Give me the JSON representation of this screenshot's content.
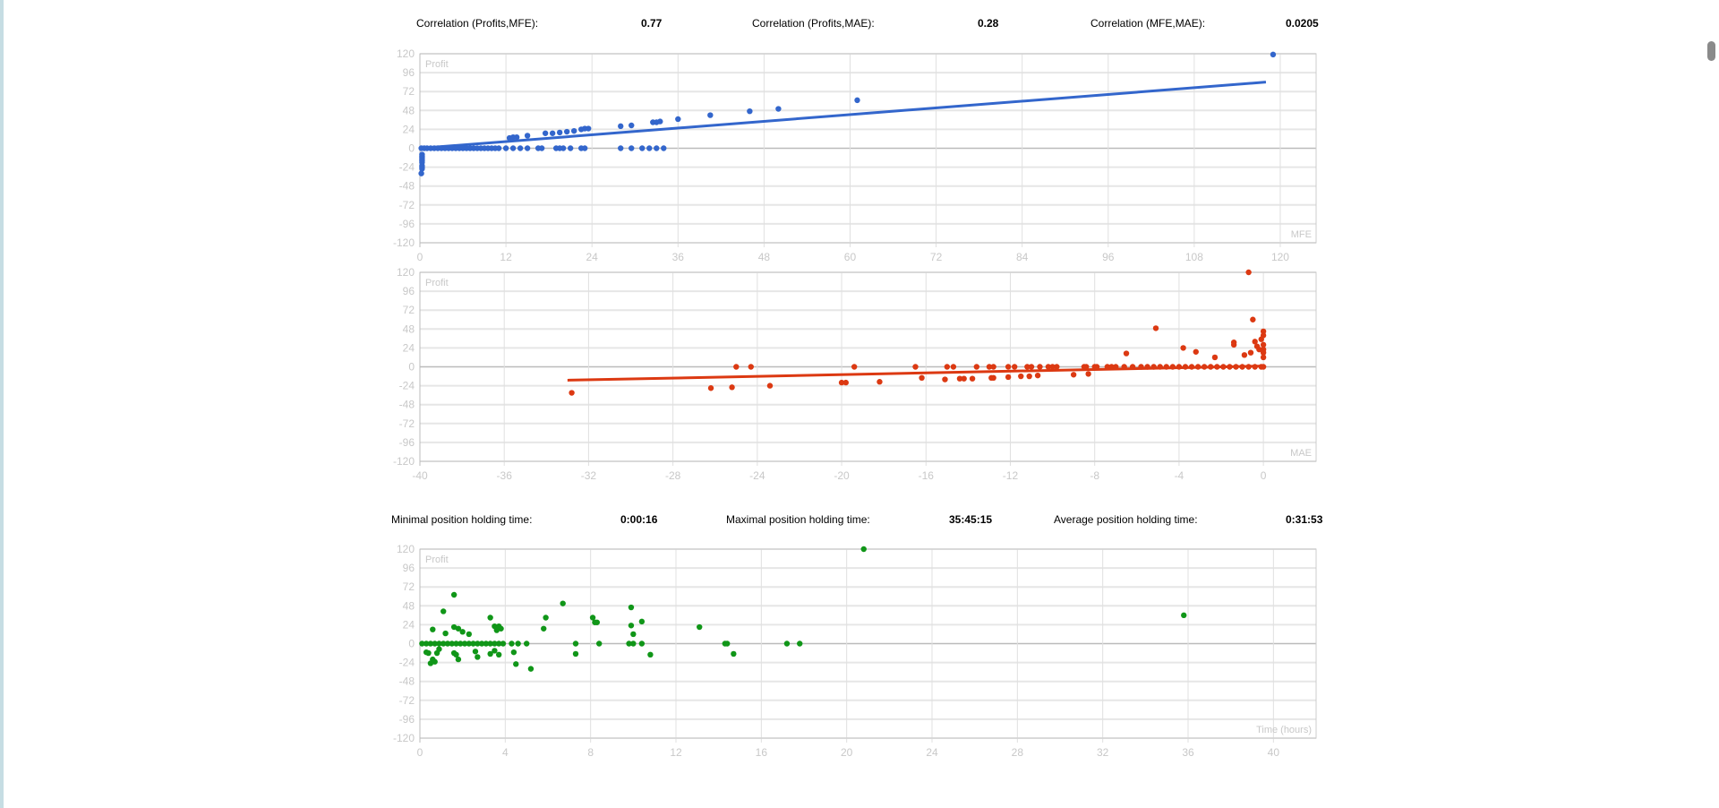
{
  "stats_top": [
    {
      "label": "Correlation (Profits,MFE):",
      "value": "0.77"
    },
    {
      "label": "Correlation (Profits,MAE):",
      "value": "0.28"
    },
    {
      "label": "Correlation (MFE,MAE):",
      "value": "0.0205"
    }
  ],
  "stats_bottom": [
    {
      "label": "Minimal position holding time:",
      "value": "0:00:16"
    },
    {
      "label": "Maximal position holding time:",
      "value": "35:45:15"
    },
    {
      "label": "Average position holding time:",
      "value": "0:31:53"
    }
  ],
  "chart_data": [
    {
      "type": "scatter",
      "ylabel": "Profit",
      "xlabel": "MFE",
      "color": "#3366cc",
      "xlim": [
        0,
        125
      ],
      "ylim": [
        -120,
        120
      ],
      "xticks": [
        0,
        12,
        24,
        36,
        48,
        60,
        72,
        84,
        96,
        108,
        120
      ],
      "yticks": [
        120,
        96,
        72,
        48,
        24,
        0,
        -24,
        -48,
        -72,
        -96,
        -120
      ],
      "trend": [
        [
          0,
          0
        ],
        [
          118,
          84
        ]
      ],
      "points": [
        [
          0.2,
          0
        ],
        [
          0.6,
          0
        ],
        [
          1,
          0
        ],
        [
          1.5,
          0
        ],
        [
          2,
          0
        ],
        [
          2.5,
          0
        ],
        [
          3,
          0
        ],
        [
          3.5,
          0
        ],
        [
          4,
          0
        ],
        [
          4.5,
          0
        ],
        [
          5,
          0
        ],
        [
          5.5,
          0
        ],
        [
          6,
          0
        ],
        [
          6.5,
          0
        ],
        [
          7,
          0
        ],
        [
          7.5,
          0
        ],
        [
          8,
          0
        ],
        [
          8.5,
          0
        ],
        [
          9,
          0
        ],
        [
          9.5,
          0
        ],
        [
          10,
          0
        ],
        [
          10.5,
          0
        ],
        [
          11,
          0
        ],
        [
          12,
          0
        ],
        [
          13,
          0
        ],
        [
          14,
          0
        ],
        [
          15,
          0
        ],
        [
          16.5,
          0
        ],
        [
          17,
          0
        ],
        [
          19,
          0
        ],
        [
          19.5,
          0
        ],
        [
          20,
          0
        ],
        [
          21,
          0
        ],
        [
          22.5,
          0
        ],
        [
          23,
          0
        ],
        [
          28,
          0
        ],
        [
          29.5,
          0
        ],
        [
          31,
          0
        ],
        [
          32,
          0
        ],
        [
          33,
          0
        ],
        [
          34,
          0
        ],
        [
          12.5,
          13
        ],
        [
          13,
          14
        ],
        [
          13.5,
          14
        ],
        [
          15,
          16
        ],
        [
          17.5,
          19
        ],
        [
          18.5,
          19
        ],
        [
          19.5,
          20
        ],
        [
          20.5,
          21
        ],
        [
          21.5,
          22
        ],
        [
          22.5,
          24
        ],
        [
          23,
          25
        ],
        [
          23.5,
          25
        ],
        [
          28,
          28
        ],
        [
          29.5,
          29
        ],
        [
          32.5,
          33
        ],
        [
          33,
          33
        ],
        [
          33.5,
          34
        ],
        [
          36,
          37
        ],
        [
          40.5,
          42
        ],
        [
          46,
          47
        ],
        [
          50,
          50
        ],
        [
          61,
          61
        ],
        [
          119,
          119
        ],
        [
          0.3,
          -8
        ],
        [
          0.3,
          -10
        ],
        [
          0.3,
          -12
        ],
        [
          0.3,
          -14
        ],
        [
          0.3,
          -16
        ],
        [
          0.3,
          -18
        ],
        [
          0.3,
          -22
        ],
        [
          0.3,
          -24
        ],
        [
          0.3,
          -26
        ],
        [
          0.2,
          -32
        ]
      ]
    },
    {
      "type": "scatter",
      "ylabel": "Profit",
      "xlabel": "MAE",
      "color": "#dc3912",
      "xlim": [
        -40,
        2.5
      ],
      "ylim": [
        -120,
        120
      ],
      "xticks": [
        -40,
        -36,
        -32,
        -28,
        -24,
        -20,
        -16,
        -12,
        -8,
        -4,
        0
      ],
      "yticks": [
        120,
        96,
        72,
        48,
        24,
        0,
        -24,
        -48,
        -72,
        -96,
        -120
      ],
      "trend": [
        [
          -33,
          -17
        ],
        [
          0,
          1
        ]
      ],
      "points": [
        [
          -32.8,
          -33
        ],
        [
          -26.2,
          -27
        ],
        [
          -25.2,
          -26
        ],
        [
          -25,
          0
        ],
        [
          -24.3,
          0
        ],
        [
          -23.4,
          -24
        ],
        [
          -20,
          -20
        ],
        [
          -19.8,
          -20
        ],
        [
          -19.4,
          0
        ],
        [
          -18.2,
          -19
        ],
        [
          -16.5,
          0
        ],
        [
          -16.2,
          -14
        ],
        [
          -15.1,
          -16
        ],
        [
          -15,
          0
        ],
        [
          -14.7,
          0
        ],
        [
          -14.4,
          -15
        ],
        [
          -14.2,
          -15
        ],
        [
          -13.8,
          -15
        ],
        [
          -13.6,
          0
        ],
        [
          -13,
          0
        ],
        [
          -12.9,
          -14
        ],
        [
          -12.8,
          0
        ],
        [
          -12.8,
          -14
        ],
        [
          -12.1,
          0
        ],
        [
          -12.1,
          -13
        ],
        [
          -11.8,
          0
        ],
        [
          -11.5,
          -12
        ],
        [
          -11.2,
          0
        ],
        [
          -11.1,
          -12
        ],
        [
          -11,
          0
        ],
        [
          -10.7,
          -11
        ],
        [
          -10.6,
          0
        ],
        [
          -10.2,
          0
        ],
        [
          -10,
          0
        ],
        [
          -9.8,
          0
        ],
        [
          -9,
          -10
        ],
        [
          -8.5,
          0
        ],
        [
          -8.4,
          0
        ],
        [
          -8.3,
          -9
        ],
        [
          -8,
          0
        ],
        [
          -7.9,
          0
        ],
        [
          -7.4,
          0
        ],
        [
          -7.2,
          0
        ],
        [
          -7,
          0
        ],
        [
          -6.6,
          0
        ],
        [
          -6.5,
          17
        ],
        [
          -6.2,
          0
        ],
        [
          -5.8,
          0
        ],
        [
          -5.5,
          0
        ],
        [
          -5.2,
          0
        ],
        [
          -4.9,
          0
        ],
        [
          -4.6,
          0
        ],
        [
          -4.3,
          0
        ],
        [
          -4,
          0
        ],
        [
          -3.7,
          0
        ],
        [
          -3.4,
          0
        ],
        [
          -3.1,
          0
        ],
        [
          -2.8,
          0
        ],
        [
          -2.5,
          0
        ],
        [
          -2.2,
          0
        ],
        [
          -1.9,
          0
        ],
        [
          -1.6,
          0
        ],
        [
          -1.3,
          0
        ],
        [
          -1,
          0
        ],
        [
          -0.7,
          0
        ],
        [
          -0.4,
          0
        ],
        [
          -0.1,
          0
        ],
        [
          0,
          0
        ],
        [
          -5.1,
          49
        ],
        [
          -3.8,
          24
        ],
        [
          -3.2,
          19
        ],
        [
          -2.3,
          12
        ],
        [
          -1.4,
          28
        ],
        [
          -1.4,
          31
        ],
        [
          -0.9,
          15
        ],
        [
          -0.7,
          120
        ],
        [
          -0.6,
          18
        ],
        [
          -0.5,
          60
        ],
        [
          -0.4,
          32
        ],
        [
          -0.3,
          26
        ],
        [
          -0.1,
          35
        ],
        [
          0,
          45
        ],
        [
          0,
          40
        ],
        [
          0,
          22
        ],
        [
          0,
          18
        ],
        [
          0,
          12
        ],
        [
          0,
          28
        ],
        [
          -0.2,
          22
        ]
      ]
    },
    {
      "type": "scatter",
      "ylabel": "Profit",
      "xlabel": "Time (hours)",
      "color": "#109618",
      "xlim": [
        0,
        42
      ],
      "ylim": [
        -120,
        120
      ],
      "xticks": [
        0,
        4,
        8,
        12,
        16,
        20,
        24,
        28,
        32,
        36,
        40
      ],
      "yticks": [
        120,
        96,
        72,
        48,
        24,
        0,
        -24,
        -48,
        -72,
        -96,
        -120
      ],
      "trend": null,
      "points": [
        [
          0.1,
          0
        ],
        [
          0.3,
          0
        ],
        [
          0.5,
          0
        ],
        [
          0.7,
          0
        ],
        [
          0.9,
          0
        ],
        [
          1.1,
          0
        ],
        [
          1.3,
          0
        ],
        [
          1.5,
          0
        ],
        [
          1.7,
          0
        ],
        [
          1.9,
          0
        ],
        [
          2.1,
          0
        ],
        [
          2.3,
          0
        ],
        [
          2.5,
          0
        ],
        [
          2.7,
          0
        ],
        [
          2.9,
          0
        ],
        [
          3.1,
          0
        ],
        [
          3.3,
          0
        ],
        [
          3.5,
          0
        ],
        [
          3.7,
          0
        ],
        [
          3.9,
          0
        ],
        [
          4.3,
          0
        ],
        [
          4.6,
          0
        ],
        [
          5,
          0
        ],
        [
          7.3,
          0
        ],
        [
          8.4,
          0
        ],
        [
          9.8,
          0
        ],
        [
          10,
          0
        ],
        [
          10.4,
          0
        ],
        [
          14.3,
          0
        ],
        [
          14.4,
          0
        ],
        [
          17.2,
          0
        ],
        [
          17.8,
          0
        ],
        [
          0.6,
          18
        ],
        [
          1.1,
          41
        ],
        [
          1.2,
          13
        ],
        [
          1.6,
          62
        ],
        [
          1.6,
          21
        ],
        [
          1.8,
          19
        ],
        [
          2,
          15
        ],
        [
          2.3,
          12
        ],
        [
          3.3,
          33
        ],
        [
          3.5,
          22
        ],
        [
          3.6,
          17
        ],
        [
          3.7,
          22
        ],
        [
          3.8,
          19
        ],
        [
          5.8,
          19
        ],
        [
          5.9,
          33
        ],
        [
          6.7,
          51
        ],
        [
          8.1,
          33
        ],
        [
          8.2,
          27
        ],
        [
          8.3,
          27
        ],
        [
          9.9,
          46
        ],
        [
          9.9,
          23
        ],
        [
          10,
          12
        ],
        [
          10.4,
          28
        ],
        [
          13.1,
          21
        ],
        [
          20.8,
          120
        ],
        [
          35.8,
          36
        ],
        [
          0.3,
          -11
        ],
        [
          0.4,
          -12
        ],
        [
          0.5,
          -25
        ],
        [
          0.6,
          -20
        ],
        [
          0.7,
          -23
        ],
        [
          0.8,
          -12
        ],
        [
          0.9,
          -7
        ],
        [
          1.6,
          -12
        ],
        [
          1.7,
          -14
        ],
        [
          1.8,
          -20
        ],
        [
          2.6,
          -10
        ],
        [
          2.7,
          -17
        ],
        [
          3.3,
          -13
        ],
        [
          3.5,
          -9
        ],
        [
          3.7,
          -14
        ],
        [
          4.4,
          -11
        ],
        [
          4.5,
          -26
        ],
        [
          5.2,
          -32
        ],
        [
          7.3,
          -13
        ],
        [
          10.8,
          -14
        ],
        [
          14.7,
          -13
        ]
      ]
    }
  ]
}
